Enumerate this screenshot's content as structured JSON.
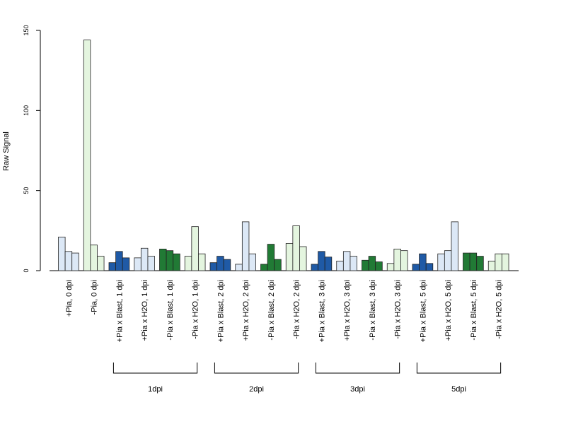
{
  "chart_data": {
    "type": "bar",
    "ylabel": "Raw Signal",
    "xlabel": "",
    "title": "",
    "ylim": [
      0,
      150
    ],
    "yticks": [
      0,
      50,
      100,
      150
    ],
    "grid": false,
    "categories": [
      "+Pia, 0 dpi",
      "-Pia, 0 dpi",
      "+Pia x Blast, 1 dpi",
      "+Pia x H2O, 1 dpi",
      "-Pia x Blast, 1 dpi",
      "-Pia x H2O, 1 dpi",
      "+Pia x Blast, 2 dpi",
      "+Pia x H2O, 2 dpi",
      "-Pia x Blast, 2 dpi",
      "-Pia x H2O, 2 dpi",
      "+Pia x Blast, 3 dpi",
      "+Pia x H2O, 3 dpi",
      "-Pia x Blast, 3 dpi",
      "-Pia x H2O, 3 dpi",
      "+Pia x Blast, 5 dpi",
      "+Pia x H2O, 5 dpi",
      "-Pia x Blast, 5 dpi",
      "-Pia x H2O, 5 dpi"
    ],
    "groups": [
      {
        "values": [
          21,
          12,
          11
        ],
        "color": "#dce8f6"
      },
      {
        "values": [
          144,
          16,
          9
        ],
        "color": "#e4f5df"
      },
      {
        "values": [
          5,
          12,
          8
        ],
        "color": "#1f5aa6"
      },
      {
        "values": [
          8,
          14,
          9
        ],
        "color": "#dce8f6"
      },
      {
        "values": [
          13.5,
          12.5,
          10.5
        ],
        "color": "#217a35"
      },
      {
        "values": [
          9,
          27.5,
          10.5
        ],
        "color": "#e4f5df"
      },
      {
        "values": [
          5,
          9,
          7
        ],
        "color": "#1f5aa6"
      },
      {
        "values": [
          4,
          30.5,
          10.5
        ],
        "color": "#dce8f6"
      },
      {
        "values": [
          4,
          16.5,
          7
        ],
        "color": "#217a35"
      },
      {
        "values": [
          17,
          28,
          15
        ],
        "color": "#e4f5df"
      },
      {
        "values": [
          4,
          12,
          8.5
        ],
        "color": "#1f5aa6"
      },
      {
        "values": [
          6,
          12,
          9
        ],
        "color": "#dce8f6"
      },
      {
        "values": [
          6.5,
          9,
          5.5
        ],
        "color": "#217a35"
      },
      {
        "values": [
          4.5,
          13.5,
          12.5
        ],
        "color": "#e4f5df"
      },
      {
        "values": [
          4,
          10.5,
          4.5
        ],
        "color": "#1f5aa6"
      },
      {
        "values": [
          10.5,
          12.5,
          30.5
        ],
        "color": "#dce8f6"
      },
      {
        "values": [
          11,
          11,
          9
        ],
        "color": "#217a35"
      },
      {
        "values": [
          6,
          10.5,
          10.5
        ],
        "color": "#e4f5df"
      }
    ],
    "brackets": [
      {
        "label": "1dpi",
        "from": 2,
        "to": 5
      },
      {
        "label": "2dpi",
        "from": 6,
        "to": 9
      },
      {
        "label": "3dpi",
        "from": 10,
        "to": 13
      },
      {
        "label": "5dpi",
        "from": 14,
        "to": 17
      }
    ]
  }
}
